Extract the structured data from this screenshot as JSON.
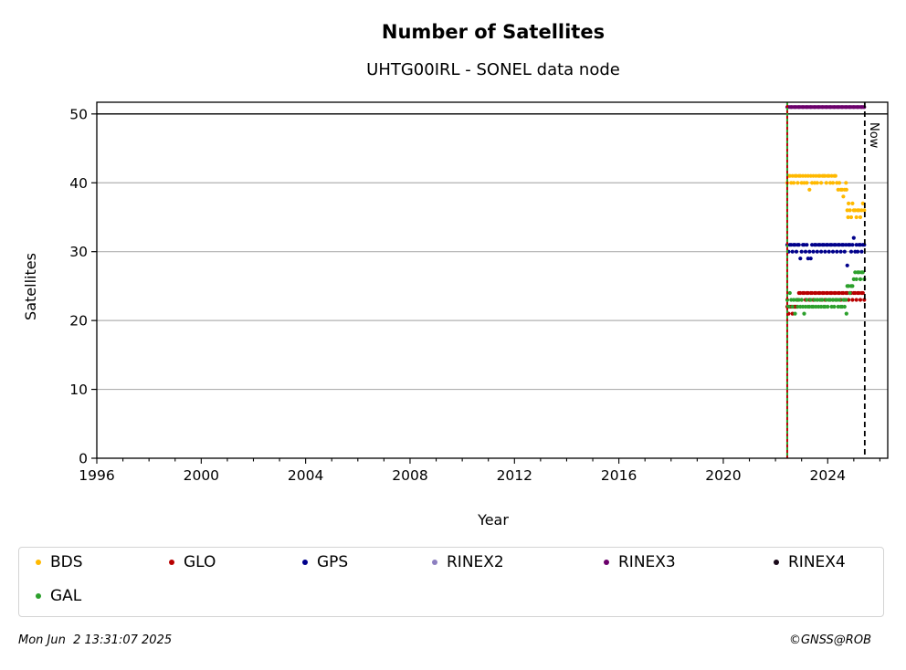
{
  "chart_data": {
    "type": "scatter",
    "title": "Number of Satellites",
    "subtitle": "UHTG00IRL - SONEL data node",
    "xlabel": "Year",
    "ylabel": "Satellites",
    "xlim": [
      1996,
      2026.3
    ],
    "ylim": [
      0,
      51.7
    ],
    "xticks": [
      1996,
      2000,
      2004,
      2008,
      2012,
      2016,
      2020,
      2024
    ],
    "yticks": [
      0,
      10,
      20,
      30,
      40,
      50
    ],
    "grid": "horizontal",
    "reference_line": {
      "y": 50
    },
    "station_start": 2022.45,
    "now": {
      "x": 2025.42,
      "label": "Now"
    },
    "legend_position": "bottom",
    "series": [
      {
        "name": "BDS",
        "color": "#ffb900",
        "points": [
          [
            2022.45,
            40
          ],
          [
            2022.5,
            41
          ],
          [
            2022.55,
            41
          ],
          [
            2022.6,
            40
          ],
          [
            2022.65,
            41
          ],
          [
            2022.7,
            40
          ],
          [
            2022.75,
            41
          ],
          [
            2022.8,
            41
          ],
          [
            2022.85,
            40
          ],
          [
            2022.9,
            41
          ],
          [
            2022.95,
            41
          ],
          [
            2023.0,
            40
          ],
          [
            2023.05,
            41
          ],
          [
            2023.1,
            40
          ],
          [
            2023.15,
            41
          ],
          [
            2023.2,
            40
          ],
          [
            2023.25,
            41
          ],
          [
            2023.3,
            39
          ],
          [
            2023.35,
            41
          ],
          [
            2023.4,
            40
          ],
          [
            2023.45,
            41
          ],
          [
            2023.5,
            40
          ],
          [
            2023.55,
            41
          ],
          [
            2023.6,
            40
          ],
          [
            2023.65,
            41
          ],
          [
            2023.7,
            41
          ],
          [
            2023.75,
            40
          ],
          [
            2023.8,
            41
          ],
          [
            2023.85,
            41
          ],
          [
            2023.9,
            41
          ],
          [
            2023.95,
            40
          ],
          [
            2024.0,
            41
          ],
          [
            2024.05,
            41
          ],
          [
            2024.1,
            40
          ],
          [
            2024.15,
            41
          ],
          [
            2024.2,
            40
          ],
          [
            2024.25,
            41
          ],
          [
            2024.3,
            41
          ],
          [
            2024.35,
            40
          ],
          [
            2024.4,
            39
          ],
          [
            2024.45,
            40
          ],
          [
            2024.5,
            39
          ],
          [
            2024.55,
            39
          ],
          [
            2024.6,
            38
          ],
          [
            2024.65,
            39
          ],
          [
            2024.7,
            40
          ],
          [
            2024.72,
            39
          ],
          [
            2024.75,
            36
          ],
          [
            2024.78,
            35
          ],
          [
            2024.8,
            37
          ],
          [
            2024.85,
            36
          ],
          [
            2024.9,
            35
          ],
          [
            2024.95,
            37
          ],
          [
            2025.0,
            36
          ],
          [
            2025.05,
            36
          ],
          [
            2025.1,
            35
          ],
          [
            2025.15,
            36
          ],
          [
            2025.2,
            36
          ],
          [
            2025.25,
            35
          ],
          [
            2025.3,
            36
          ],
          [
            2025.35,
            37
          ],
          [
            2025.4,
            36
          ]
        ]
      },
      {
        "name": "GLO",
        "color": "#b80000",
        "points": [
          [
            2022.45,
            22
          ],
          [
            2022.5,
            21
          ],
          [
            2022.55,
            22
          ],
          [
            2022.6,
            22
          ],
          [
            2022.65,
            21
          ],
          [
            2022.7,
            22
          ],
          [
            2022.75,
            22
          ],
          [
            2022.8,
            22
          ],
          [
            2022.85,
            23
          ],
          [
            2022.9,
            24
          ],
          [
            2022.95,
            24
          ],
          [
            2023.0,
            23
          ],
          [
            2023.05,
            24
          ],
          [
            2023.1,
            24
          ],
          [
            2023.15,
            23
          ],
          [
            2023.2,
            24
          ],
          [
            2023.25,
            24
          ],
          [
            2023.3,
            23
          ],
          [
            2023.35,
            24
          ],
          [
            2023.4,
            24
          ],
          [
            2023.45,
            23
          ],
          [
            2023.5,
            24
          ],
          [
            2023.55,
            24
          ],
          [
            2023.6,
            23
          ],
          [
            2023.65,
            24
          ],
          [
            2023.7,
            24
          ],
          [
            2023.75,
            23
          ],
          [
            2023.8,
            24
          ],
          [
            2023.85,
            24
          ],
          [
            2023.9,
            23
          ],
          [
            2023.95,
            24
          ],
          [
            2024.0,
            24
          ],
          [
            2024.05,
            23
          ],
          [
            2024.1,
            24
          ],
          [
            2024.15,
            24
          ],
          [
            2024.2,
            23
          ],
          [
            2024.25,
            24
          ],
          [
            2024.3,
            24
          ],
          [
            2024.35,
            23
          ],
          [
            2024.4,
            24
          ],
          [
            2024.45,
            24
          ],
          [
            2024.5,
            23
          ],
          [
            2024.55,
            24
          ],
          [
            2024.6,
            24
          ],
          [
            2024.65,
            23
          ],
          [
            2024.7,
            24
          ],
          [
            2024.75,
            24
          ],
          [
            2024.8,
            23
          ],
          [
            2024.85,
            24
          ],
          [
            2024.9,
            24
          ],
          [
            2024.95,
            23
          ],
          [
            2025.0,
            24
          ],
          [
            2025.05,
            24
          ],
          [
            2025.1,
            23
          ],
          [
            2025.15,
            24
          ],
          [
            2025.2,
            24
          ],
          [
            2025.25,
            23
          ],
          [
            2025.3,
            24
          ],
          [
            2025.35,
            24
          ],
          [
            2025.4,
            23
          ]
        ]
      },
      {
        "name": "GPS",
        "color": "#00008b",
        "points": [
          [
            2022.45,
            31
          ],
          [
            2022.5,
            30
          ],
          [
            2022.55,
            31
          ],
          [
            2022.6,
            31
          ],
          [
            2022.65,
            30
          ],
          [
            2022.7,
            31
          ],
          [
            2022.75,
            31
          ],
          [
            2022.8,
            30
          ],
          [
            2022.85,
            31
          ],
          [
            2022.9,
            31
          ],
          [
            2022.95,
            29
          ],
          [
            2023.0,
            30
          ],
          [
            2023.05,
            31
          ],
          [
            2023.1,
            31
          ],
          [
            2023.15,
            30
          ],
          [
            2023.2,
            31
          ],
          [
            2023.25,
            29
          ],
          [
            2023.3,
            30
          ],
          [
            2023.35,
            29
          ],
          [
            2023.4,
            31
          ],
          [
            2023.45,
            30
          ],
          [
            2023.5,
            31
          ],
          [
            2023.55,
            31
          ],
          [
            2023.6,
            30
          ],
          [
            2023.65,
            31
          ],
          [
            2023.7,
            31
          ],
          [
            2023.75,
            30
          ],
          [
            2023.8,
            31
          ],
          [
            2023.85,
            31
          ],
          [
            2023.9,
            30
          ],
          [
            2023.95,
            31
          ],
          [
            2024.0,
            31
          ],
          [
            2024.05,
            30
          ],
          [
            2024.1,
            31
          ],
          [
            2024.15,
            31
          ],
          [
            2024.2,
            30
          ],
          [
            2024.25,
            31
          ],
          [
            2024.3,
            31
          ],
          [
            2024.35,
            30
          ],
          [
            2024.4,
            31
          ],
          [
            2024.45,
            31
          ],
          [
            2024.5,
            30
          ],
          [
            2024.55,
            31
          ],
          [
            2024.6,
            31
          ],
          [
            2024.65,
            30
          ],
          [
            2024.7,
            31
          ],
          [
            2024.75,
            28
          ],
          [
            2024.8,
            31
          ],
          [
            2024.85,
            31
          ],
          [
            2024.9,
            30
          ],
          [
            2024.95,
            31
          ],
          [
            2025.0,
            32
          ],
          [
            2025.05,
            30
          ],
          [
            2025.1,
            31
          ],
          [
            2025.15,
            30
          ],
          [
            2025.2,
            31
          ],
          [
            2025.25,
            31
          ],
          [
            2025.3,
            30
          ],
          [
            2025.35,
            31
          ],
          [
            2025.4,
            31
          ]
        ]
      },
      {
        "name": "RINEX2",
        "color": "#8c7fc0",
        "points": []
      },
      {
        "name": "RINEX3",
        "color": "#6b006b",
        "points": [
          [
            2022.45,
            51
          ],
          [
            2022.6,
            51
          ],
          [
            2022.75,
            51
          ],
          [
            2022.9,
            51
          ],
          [
            2023.05,
            51
          ],
          [
            2023.2,
            51
          ],
          [
            2023.35,
            51
          ],
          [
            2023.5,
            51
          ],
          [
            2023.65,
            51
          ],
          [
            2023.8,
            51
          ],
          [
            2023.95,
            51
          ],
          [
            2024.1,
            51
          ],
          [
            2024.25,
            51
          ],
          [
            2024.4,
            51
          ],
          [
            2024.55,
            51
          ],
          [
            2024.7,
            51
          ],
          [
            2024.85,
            51
          ],
          [
            2025.0,
            51
          ],
          [
            2025.15,
            51
          ],
          [
            2025.3,
            51
          ],
          [
            2025.4,
            51
          ]
        ]
      },
      {
        "name": "RINEX4",
        "color": "#1a0a1a",
        "points": []
      },
      {
        "name": "GAL",
        "color": "#2ca02c",
        "points": [
          [
            2022.45,
            23
          ],
          [
            2022.5,
            22
          ],
          [
            2022.55,
            24
          ],
          [
            2022.6,
            23
          ],
          [
            2022.65,
            22
          ],
          [
            2022.7,
            23
          ],
          [
            2022.75,
            21
          ],
          [
            2022.8,
            23
          ],
          [
            2022.85,
            22
          ],
          [
            2022.9,
            23
          ],
          [
            2022.95,
            22
          ],
          [
            2023.0,
            23
          ],
          [
            2023.05,
            22
          ],
          [
            2023.1,
            21
          ],
          [
            2023.15,
            22
          ],
          [
            2023.2,
            23
          ],
          [
            2023.25,
            22
          ],
          [
            2023.3,
            22
          ],
          [
            2023.35,
            23
          ],
          [
            2023.4,
            22
          ],
          [
            2023.45,
            22
          ],
          [
            2023.5,
            23
          ],
          [
            2023.55,
            22
          ],
          [
            2023.6,
            23
          ],
          [
            2023.65,
            22
          ],
          [
            2023.7,
            23
          ],
          [
            2023.75,
            22
          ],
          [
            2023.8,
            23
          ],
          [
            2023.85,
            22
          ],
          [
            2023.9,
            22
          ],
          [
            2023.95,
            23
          ],
          [
            2024.0,
            22
          ],
          [
            2024.05,
            23
          ],
          [
            2024.1,
            23
          ],
          [
            2024.15,
            22
          ],
          [
            2024.2,
            23
          ],
          [
            2024.25,
            22
          ],
          [
            2024.3,
            23
          ],
          [
            2024.35,
            23
          ],
          [
            2024.4,
            22
          ],
          [
            2024.45,
            23
          ],
          [
            2024.5,
            22
          ],
          [
            2024.55,
            22
          ],
          [
            2024.6,
            23
          ],
          [
            2024.65,
            22
          ],
          [
            2024.7,
            23
          ],
          [
            2024.72,
            21
          ],
          [
            2024.75,
            25
          ],
          [
            2024.8,
            25
          ],
          [
            2024.85,
            24
          ],
          [
            2024.9,
            25
          ],
          [
            2024.95,
            25
          ],
          [
            2025.0,
            26
          ],
          [
            2025.05,
            27
          ],
          [
            2025.1,
            26
          ],
          [
            2025.15,
            27
          ],
          [
            2025.2,
            27
          ],
          [
            2025.25,
            26
          ],
          [
            2025.3,
            27
          ],
          [
            2025.35,
            27
          ],
          [
            2025.4,
            26
          ]
        ]
      }
    ]
  },
  "legend": {
    "items": [
      {
        "label": "BDS",
        "color": "#ffb900"
      },
      {
        "label": "GLO",
        "color": "#b80000"
      },
      {
        "label": "GPS",
        "color": "#00008b"
      },
      {
        "label": "RINEX2",
        "color": "#8c7fc0"
      },
      {
        "label": "RINEX3",
        "color": "#6b006b"
      },
      {
        "label": "RINEX4",
        "color": "#1a0a1a"
      },
      {
        "label": "GAL",
        "color": "#2ca02c"
      }
    ]
  },
  "footer": {
    "timestamp": "Mon Jun  2 13:31:07 2025",
    "credit": "©GNSS@ROB"
  }
}
